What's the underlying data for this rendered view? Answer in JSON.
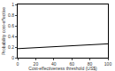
{
  "chart_data": {
    "type": "line",
    "x_label": "Cost-effectiveness threshold (US$)",
    "y_label": "Probability cost-effective",
    "x": [
      0,
      10,
      20,
      30,
      40,
      50,
      60,
      70,
      80,
      90,
      100
    ],
    "values": [
      0.17,
      0.18,
      0.19,
      0.2,
      0.2,
      0.21,
      0.22,
      0.23,
      0.24,
      0.25,
      0.26
    ],
    "color": "#000000",
    "xlim": [
      0,
      100
    ],
    "xticks": [
      0,
      20,
      40,
      60,
      80,
      100
    ],
    "ylim": [
      0,
      1
    ],
    "yticks": [
      0,
      0.2,
      0.4,
      0.6,
      0.8,
      1
    ],
    "grid": false
  }
}
